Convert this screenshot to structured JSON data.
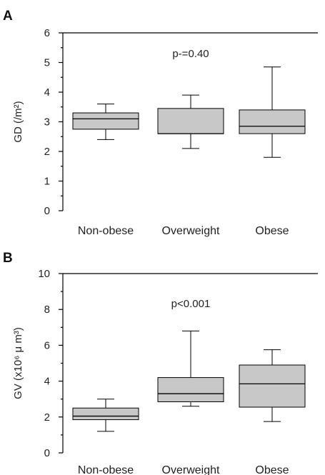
{
  "chart_data": [
    {
      "panel": "A",
      "type": "box",
      "ylabel": "GD (/m²)",
      "ylim": [
        0,
        6
      ],
      "yticks": [
        "0",
        "1",
        "2",
        "3",
        "4",
        "5",
        "6"
      ],
      "annotation": "p-=0.40",
      "categories": [
        "Non-obese",
        "Overweight",
        "Obese"
      ],
      "boxes": [
        {
          "min": 2.4,
          "q1": 2.75,
          "median": 3.1,
          "q3": 3.3,
          "max": 3.6
        },
        {
          "min": 2.1,
          "q1": 2.6,
          "median": 2.6,
          "q3": 3.45,
          "max": 3.9
        },
        {
          "min": 1.8,
          "q1": 2.6,
          "median": 2.85,
          "q3": 3.4,
          "max": 4.85
        }
      ]
    },
    {
      "panel": "B",
      "type": "box",
      "ylabel": "GV (x10⁶ μ m³)",
      "ylim": [
        0,
        10
      ],
      "yticks": [
        "0",
        "2",
        "4",
        "6",
        "8",
        "10"
      ],
      "annotation": "p<0.001",
      "categories": [
        "Non-obese",
        "Overweight",
        "Obese"
      ],
      "boxes": [
        {
          "min": 1.2,
          "q1": 1.85,
          "median": 2.05,
          "q3": 2.5,
          "max": 3.0
        },
        {
          "min": 2.6,
          "q1": 2.85,
          "median": 3.3,
          "q3": 4.2,
          "max": 6.8
        },
        {
          "min": 1.75,
          "q1": 2.55,
          "median": 3.85,
          "q3": 4.9,
          "max": 5.75
        }
      ]
    }
  ]
}
